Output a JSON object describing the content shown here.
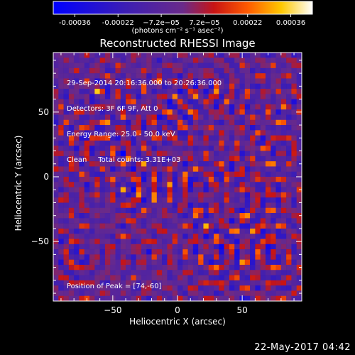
{
  "colorbar": {
    "tick_labels": [
      "-0.00036",
      "-0.00022",
      "−7.2e−05",
      "7.2e−05",
      "0.00022",
      "0.00036"
    ],
    "units": "(photons cm⁻² s⁻¹ asec⁻²)"
  },
  "chart_data": {
    "type": "heatmap",
    "title": "Reconstructed RHESSI Image",
    "xlabel": "Heliocentric X (arcsec)",
    "ylabel": "Heliocentric Y (arcsec)",
    "xlim": [
      -96,
      96
    ],
    "ylim": [
      -96,
      96
    ],
    "xticks": [
      -50,
      0,
      50
    ],
    "yticks": [
      -50,
      0,
      50
    ],
    "color_range": [
      -0.00036,
      0.00036
    ],
    "colormap": "blue-purple-red-yellow-white",
    "peak_position": [
      74,
      -60
    ],
    "annotations": [
      "29-Sep-2014 20:16:36.000 to 20:26:36.000",
      "Detectors: 3F 6F 9F, Att 0",
      "Energy Range: 25.0 - 50.0 keV",
      "Clean     Total counts: 3.31E+03"
    ],
    "peak_label": "Position of Peak = [74,-60]"
  },
  "footer": {
    "timestamp": "22-May-2017 04:42"
  },
  "colors": {
    "axes": "#ffffff",
    "background": "#000000"
  }
}
